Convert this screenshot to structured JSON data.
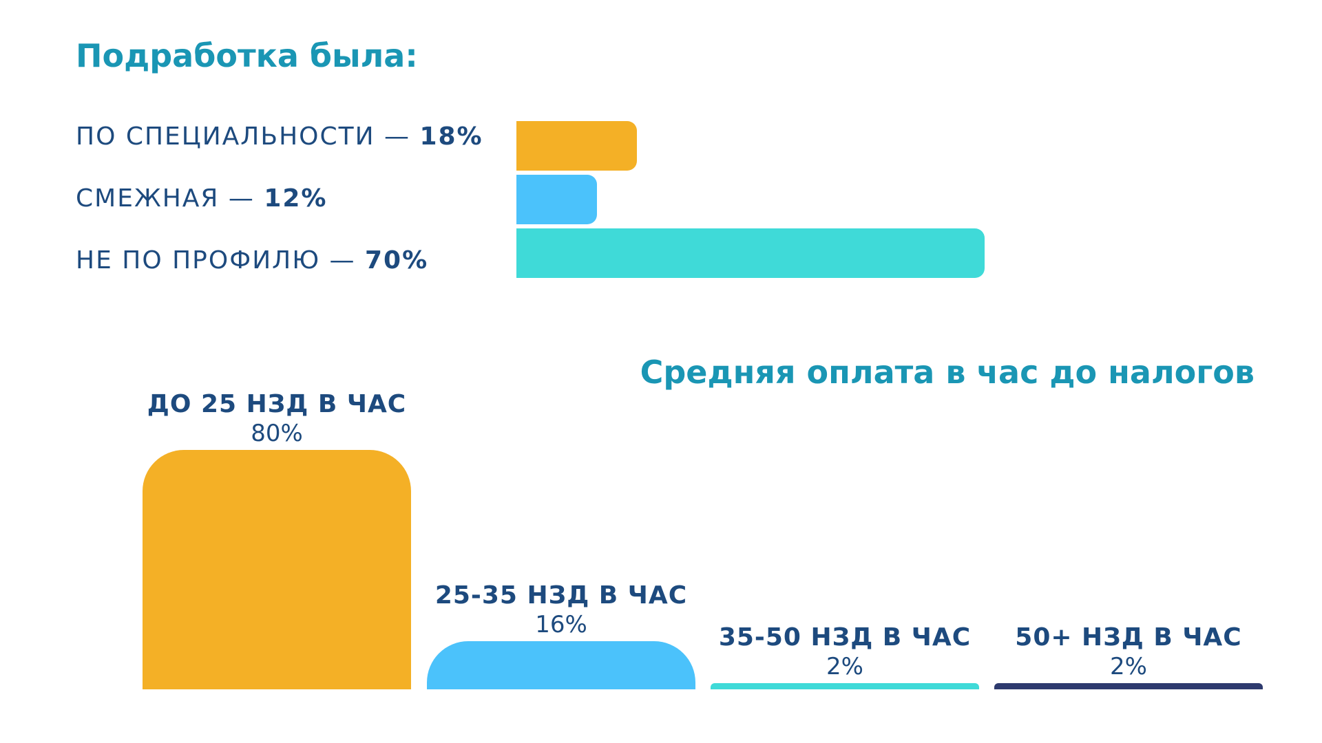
{
  "chart_data": [
    {
      "type": "bar",
      "orientation": "horizontal",
      "title": "Подработка была:",
      "categories": [
        "ПО СПЕЦИАЛЬНОСТИ",
        "СМЕЖНАЯ",
        "НЕ ПО ПРОФИЛЮ"
      ],
      "value_labels": [
        "18%",
        "12%",
        "70%"
      ],
      "values": [
        18,
        12,
        70
      ],
      "unit": "%",
      "colors": [
        "#f4b026",
        "#4bc2fb",
        "#3fdad8"
      ],
      "xlim": [
        0,
        100
      ],
      "grid": false,
      "legend": "none"
    },
    {
      "type": "bar",
      "orientation": "vertical",
      "title": "Средняя оплата в час до налогов",
      "categories": [
        "ДО 25 НЗД В ЧАС",
        "25-35 НЗД В ЧАС",
        "35-50 НЗД В ЧАС",
        "50+ НЗД В ЧАС"
      ],
      "value_labels": [
        "80%",
        "16%",
        "2%",
        "2%"
      ],
      "values": [
        80,
        16,
        2,
        2
      ],
      "unit": "%",
      "colors": [
        "#f4b026",
        "#4bc2fb",
        "#3fdad8",
        "#2e3a6e"
      ],
      "ylim": [
        0,
        80
      ],
      "grid": false,
      "legend": "none"
    }
  ]
}
